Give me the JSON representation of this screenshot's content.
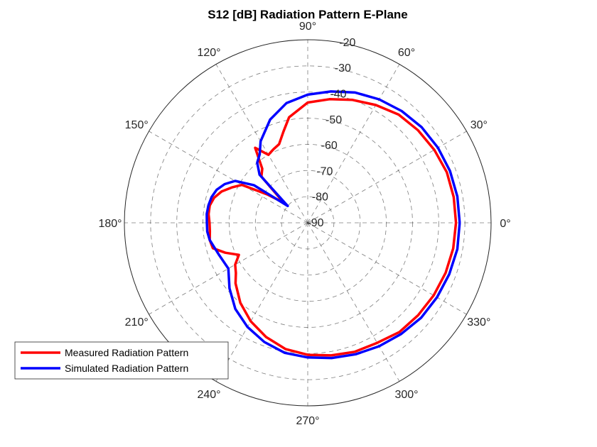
{
  "chart_data": {
    "type": "polar-line",
    "title": "S12 [dB] Radiation Pattern E-Plane",
    "r_range": [
      -90,
      -20
    ],
    "r_ticks": [
      -20,
      -30,
      -40,
      -50,
      -60,
      -70,
      -80,
      -90
    ],
    "r_tick_labels": [
      "-20",
      "-30",
      "-40",
      "-50",
      "-60",
      "-70",
      "-80",
      "-90"
    ],
    "theta_ticks": [
      0,
      30,
      60,
      90,
      120,
      150,
      180,
      210,
      240,
      270,
      300,
      330
    ],
    "theta_tick_labels": [
      "0°",
      "30°",
      "60°",
      "90°",
      "120°",
      "150°",
      "180°",
      "210°",
      "240°",
      "270°",
      "300°",
      "330°"
    ],
    "grid": true,
    "legend_position": "bottom-left",
    "series": [
      {
        "name": "Measured Radiation Pattern",
        "color": "#ff0000",
        "theta": [
          0,
          10,
          20,
          30,
          40,
          50,
          60,
          70,
          80,
          90,
          100,
          105,
          110,
          115,
          120,
          125,
          130,
          135,
          140,
          145,
          150,
          155,
          160,
          165,
          170,
          175,
          180,
          185,
          190,
          195,
          200,
          205,
          210,
          215,
          220,
          230,
          240,
          250,
          260,
          270,
          280,
          290,
          300,
          310,
          320,
          330,
          340,
          350
        ],
        "values": [
          -33.4,
          -33.4,
          -33.5,
          -34.2,
          -35.0,
          -36.0,
          -38.0,
          -40.0,
          -42.0,
          -44.0,
          -49.0,
          -54.0,
          -58.0,
          -59.0,
          -60.0,
          -55.0,
          -63.0,
          -65.0,
          -78.0,
          -71.0,
          -61.0,
          -58.0,
          -55.0,
          -53.0,
          -52.0,
          -52.0,
          -52.5,
          -52.5,
          -52.0,
          -52.5,
          -56.5,
          -61.0,
          -58.0,
          -56.5,
          -54.0,
          -50.0,
          -46.5,
          -43.5,
          -41.0,
          -39.5,
          -38.5,
          -37.5,
          -37.0,
          -35.5,
          -35.0,
          -34.5,
          -34.0,
          -33.6
        ]
      },
      {
        "name": "Simulated Radiation Pattern",
        "color": "#0000ff",
        "theta": [
          0,
          10,
          20,
          30,
          40,
          50,
          60,
          70,
          80,
          90,
          100,
          110,
          120,
          125,
          130,
          135,
          140,
          145,
          150,
          155,
          160,
          165,
          170,
          175,
          180,
          185,
          190,
          200,
          210,
          220,
          230,
          240,
          250,
          260,
          270,
          280,
          290,
          300,
          310,
          320,
          330,
          340,
          350
        ],
        "values": [
          -32.0,
          -32.0,
          -32.2,
          -32.6,
          -33.2,
          -34.2,
          -35.5,
          -37.0,
          -39.0,
          -41.0,
          -43.5,
          -48.0,
          -54.0,
          -58.0,
          -60.0,
          -64.0,
          -80.0,
          -65.0,
          -58.0,
          -55.0,
          -53.0,
          -52.0,
          -51.5,
          -51.3,
          -51.5,
          -51.5,
          -52.0,
          -54.0,
          -55.0,
          -51.0,
          -47.0,
          -44.0,
          -41.5,
          -39.5,
          -38.5,
          -37.5,
          -36.5,
          -35.5,
          -34.5,
          -33.5,
          -33.0,
          -32.5,
          -32.0
        ]
      }
    ]
  }
}
